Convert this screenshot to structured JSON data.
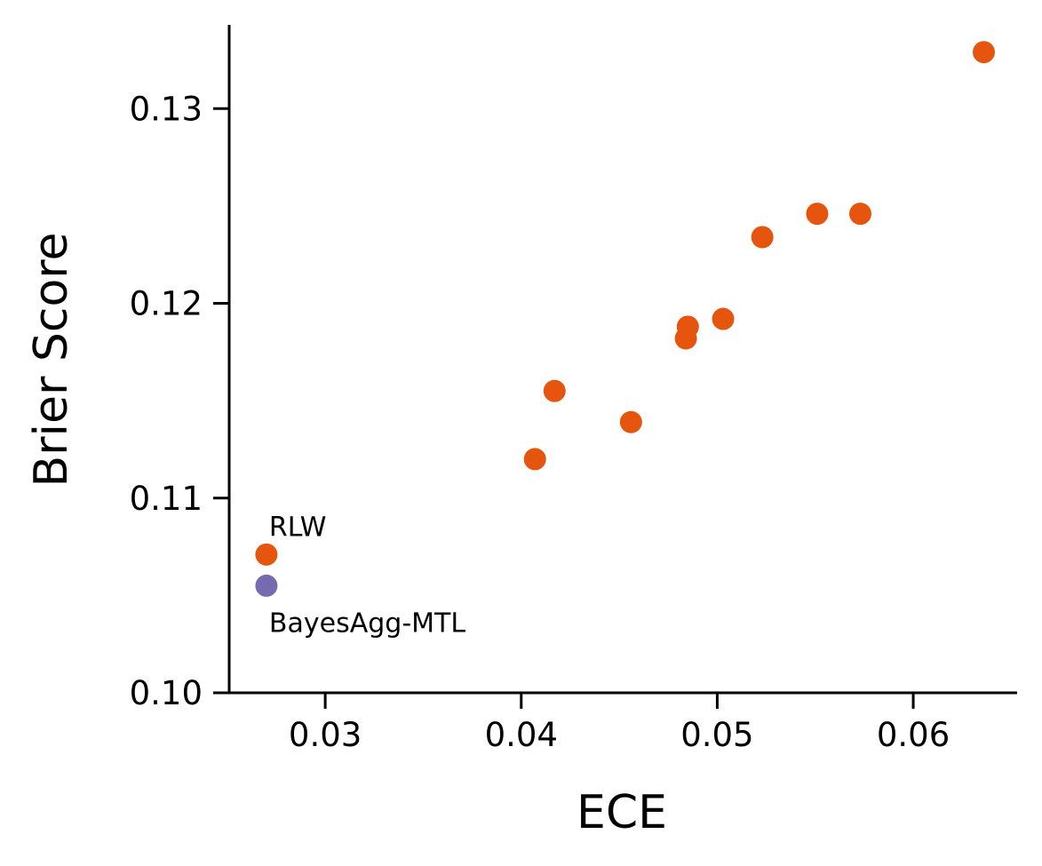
{
  "chart_data": {
    "type": "scatter",
    "title": "",
    "xlabel": "ECE",
    "ylabel": "Brier Score",
    "xlim": [
      0.0251,
      0.0653
    ],
    "ylim": [
      0.1,
      0.1343
    ],
    "xticks": [
      0.03,
      0.04,
      0.05,
      0.06
    ],
    "xtick_labels": [
      "0.03",
      "0.04",
      "0.05",
      "0.06"
    ],
    "yticks": [
      0.1,
      0.11,
      0.12,
      0.13
    ],
    "ytick_labels": [
      "0.10",
      "0.11",
      "0.12",
      "0.13"
    ],
    "grid": false,
    "series": [
      {
        "color": "#e6550d",
        "points": [
          {
            "x": 0.027,
            "y": 0.1071
          },
          {
            "x": 0.0407,
            "y": 0.112
          },
          {
            "x": 0.0417,
            "y": 0.1155
          },
          {
            "x": 0.0456,
            "y": 0.1139
          },
          {
            "x": 0.0484,
            "y": 0.1182
          },
          {
            "x": 0.0485,
            "y": 0.1188
          },
          {
            "x": 0.0503,
            "y": 0.1192
          },
          {
            "x": 0.0523,
            "y": 0.1234
          },
          {
            "x": 0.0551,
            "y": 0.1246
          },
          {
            "x": 0.0573,
            "y": 0.1246
          },
          {
            "x": 0.0636,
            "y": 0.1329
          }
        ]
      },
      {
        "color": "#756bb1",
        "points": [
          {
            "x": 0.027,
            "y": 0.1055
          }
        ]
      }
    ],
    "annotations": [
      {
        "text": "RLW",
        "x": 0.027,
        "y": 0.1071,
        "position": "above-right"
      },
      {
        "text": "BayesAgg-MTL",
        "x": 0.027,
        "y": 0.1055,
        "position": "below-right"
      }
    ]
  }
}
